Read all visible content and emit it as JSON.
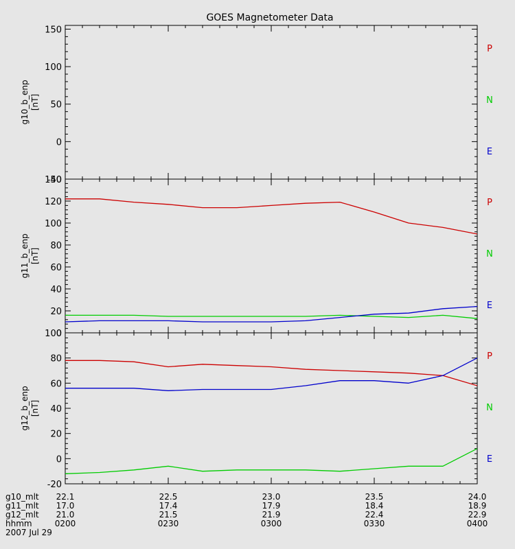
{
  "title": "GOES Magnetometer Data",
  "panels": [
    {
      "ylabel": "g10_b_enp",
      "unit": "[nT]",
      "ylim": [
        -50,
        155
      ],
      "yticks": [
        -50,
        0,
        50,
        100,
        150
      ]
    },
    {
      "ylabel": "g11_b_enp",
      "unit": "[nT]",
      "ylim": [
        0,
        140
      ],
      "yticks": [
        0,
        20,
        40,
        60,
        80,
        100,
        120,
        140
      ]
    },
    {
      "ylabel": "g12_b_enp",
      "unit": "[nT]",
      "ylim": [
        -20,
        100
      ],
      "yticks": [
        -20,
        0,
        20,
        40,
        60,
        80,
        100
      ]
    }
  ],
  "legend": [
    {
      "label": "P",
      "color": "#cc0000"
    },
    {
      "label": "N",
      "color": "#00cc00"
    },
    {
      "label": "E",
      "color": "#0000cc"
    }
  ],
  "footer": {
    "rows": [
      {
        "label": "g10_mlt",
        "values": [
          "22.1",
          "22.5",
          "23.0",
          "23.5",
          "24.0"
        ]
      },
      {
        "label": "g11_mlt",
        "values": [
          "17.0",
          "17.4",
          "17.9",
          "18.4",
          "18.9"
        ]
      },
      {
        "label": "g12_mlt",
        "values": [
          "21.0",
          "21.5",
          "21.9",
          "22.4",
          "22.9"
        ]
      },
      {
        "label": "hhmm",
        "values": [
          "0200",
          "0230",
          "0300",
          "0330",
          "0400"
        ]
      }
    ],
    "date": "2007 Jul 29"
  },
  "chart_data": {
    "type": "line",
    "title": "GOES Magnetometer Data",
    "x_unit": "hhmm",
    "xlim": [
      "0200",
      "0400"
    ],
    "x": [
      "0200",
      "0210",
      "0220",
      "0230",
      "0240",
      "0250",
      "0300",
      "0310",
      "0320",
      "0330",
      "0340",
      "0350",
      "0400"
    ],
    "panels": [
      {
        "name": "g10_b_enp",
        "ylim": [
          -50,
          155
        ],
        "series": []
      },
      {
        "name": "g11_b_enp",
        "ylim": [
          0,
          140
        ],
        "series": [
          {
            "name": "P",
            "color": "#cc0000",
            "values": [
              122,
              122,
              119,
              117,
              114,
              114,
              116,
              118,
              119,
              110,
              100,
              96,
              90
            ]
          },
          {
            "name": "N",
            "color": "#00cc00",
            "values": [
              16,
              16,
              16,
              15,
              15,
              15,
              15,
              15,
              16,
              15,
              14,
              16,
              13
            ]
          },
          {
            "name": "E",
            "color": "#0000cc",
            "values": [
              10,
              11,
              11,
              11,
              10,
              10,
              10,
              11,
              14,
              17,
              18,
              22,
              24
            ]
          }
        ]
      },
      {
        "name": "g12_b_enp",
        "ylim": [
          -20,
          100
        ],
        "series": [
          {
            "name": "P",
            "color": "#cc0000",
            "values": [
              78,
              78,
              77,
              73,
              75,
              74,
              73,
              71,
              70,
              69,
              68,
              66,
              58
            ]
          },
          {
            "name": "N",
            "color": "#00cc00",
            "values": [
              -12,
              -11,
              -9,
              -6,
              -10,
              -9,
              -9,
              -9,
              -10,
              -8,
              -6,
              -6,
              8
            ]
          },
          {
            "name": "E",
            "color": "#0000cc",
            "values": [
              56,
              56,
              56,
              54,
              55,
              55,
              55,
              58,
              62,
              62,
              60,
              66,
              80
            ]
          }
        ]
      }
    ]
  }
}
